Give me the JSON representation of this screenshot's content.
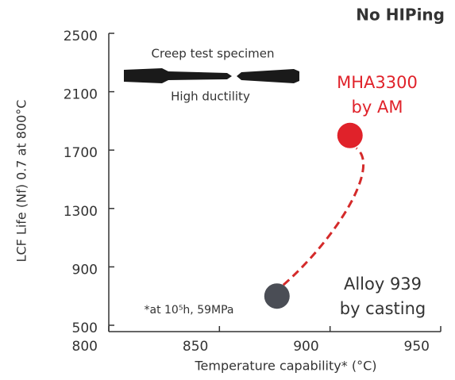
{
  "chart_data": {
    "type": "scatter",
    "title": "No HIPing",
    "x_label": "Temperature capability* (°C)",
    "y_label": "LCF Life (Nf) 0.7 at 800°C",
    "xlim": [
      800,
      950
    ],
    "xticks": [
      800,
      850,
      900,
      950
    ],
    "ylim": [
      500,
      2500
    ],
    "yticks": [
      500,
      900,
      1300,
      1700,
      2100,
      2500
    ],
    "points": [
      {
        "label": [
          "MHA3300",
          "by AM"
        ],
        "x": 909,
        "y": 1800,
        "color": "#e0222a"
      },
      {
        "label": [
          "Alloy 939",
          "by casting"
        ],
        "x": 876,
        "y": 700,
        "color": "#4a4d55"
      }
    ],
    "annotations": [
      "Creep test specimen",
      "High ductility",
      "*at 10⁵h, 59MPa"
    ]
  }
}
